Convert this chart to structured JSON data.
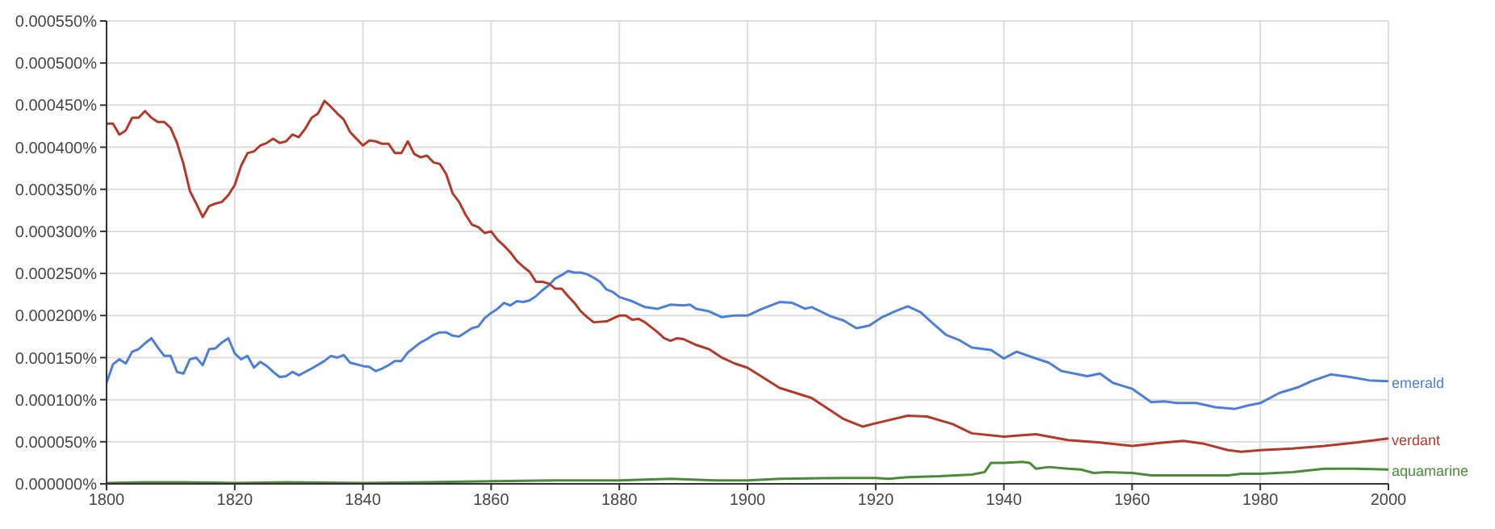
{
  "chart_data": {
    "type": "line",
    "xlim": [
      1800,
      2000
    ],
    "xticks": [
      1800,
      1820,
      1840,
      1860,
      1880,
      1900,
      1920,
      1940,
      1960,
      1980,
      2000
    ],
    "ylim": [
      0,
      0.00055
    ],
    "yticks": [
      {
        "value": 0,
        "label": "0.000000%"
      },
      {
        "value": 5e-05,
        "label": "0.000050%"
      },
      {
        "value": 0.0001,
        "label": "0.000100%"
      },
      {
        "value": 0.00015,
        "label": "0.000150%"
      },
      {
        "value": 0.0002,
        "label": "0.000200%"
      },
      {
        "value": 0.00025,
        "label": "0.000250%"
      },
      {
        "value": 0.0003,
        "label": "0.000300%"
      },
      {
        "value": 0.00035,
        "label": "0.000350%"
      },
      {
        "value": 0.0004,
        "label": "0.000400%"
      },
      {
        "value": 0.00045,
        "label": "0.000450%"
      },
      {
        "value": 0.0005,
        "label": "0.000500%"
      },
      {
        "value": 0.00055,
        "label": "0.000550%"
      }
    ],
    "grid": true,
    "marker": "none",
    "line_style": "solid",
    "series": [
      {
        "name": "emerald",
        "color": "#4d7fd6",
        "x": [
          1800,
          1801,
          1802,
          1803,
          1804,
          1805,
          1806,
          1807,
          1808,
          1809,
          1810,
          1811,
          1812,
          1813,
          1814,
          1815,
          1816,
          1817,
          1818,
          1819,
          1820,
          1821,
          1822,
          1823,
          1824,
          1825,
          1826,
          1827,
          1828,
          1829,
          1830,
          1832,
          1834,
          1835,
          1836,
          1837,
          1838,
          1840,
          1841,
          1842,
          1843,
          1844,
          1845,
          1846,
          1847,
          1848,
          1849,
          1850,
          1851,
          1852,
          1853,
          1854,
          1855,
          1856,
          1857,
          1858,
          1859,
          1860,
          1861,
          1862,
          1863,
          1864,
          1865,
          1866,
          1867,
          1868,
          1869,
          1870,
          1871,
          1872,
          1873,
          1874,
          1875,
          1876,
          1877,
          1878,
          1879,
          1880,
          1882,
          1884,
          1886,
          1888,
          1890,
          1891,
          1892,
          1894,
          1896,
          1898,
          1900,
          1902,
          1905,
          1907,
          1909,
          1910,
          1913,
          1915,
          1917,
          1919,
          1921,
          1923,
          1925,
          1927,
          1929,
          1931,
          1933,
          1935,
          1938,
          1940,
          1942,
          1945,
          1947,
          1949,
          1951,
          1953,
          1955,
          1957,
          1960,
          1963,
          1965,
          1967,
          1970,
          1973,
          1976,
          1978,
          1980,
          1983,
          1986,
          1988,
          1991,
          1994,
          1997,
          2000
        ],
        "values": [
          0.00012,
          0.000142,
          0.000148,
          0.000143,
          0.000157,
          0.00016,
          0.000167,
          0.000173,
          0.000162,
          0.000152,
          0.000152,
          0.000133,
          0.000131,
          0.000148,
          0.00015,
          0.000141,
          0.00016,
          0.000161,
          0.000168,
          0.000173,
          0.000155,
          0.000148,
          0.000152,
          0.000138,
          0.000145,
          0.00014,
          0.000133,
          0.000127,
          0.000128,
          0.000133,
          0.000129,
          0.000137,
          0.000146,
          0.000152,
          0.00015,
          0.000153,
          0.000144,
          0.00014,
          0.000139,
          0.000134,
          0.000137,
          0.000141,
          0.000146,
          0.000146,
          0.000156,
          0.000162,
          0.000168,
          0.000172,
          0.000177,
          0.00018,
          0.00018,
          0.000176,
          0.000175,
          0.00018,
          0.000185,
          0.000187,
          0.000197,
          0.000203,
          0.000208,
          0.000215,
          0.000212,
          0.000217,
          0.000216,
          0.000218,
          0.000223,
          0.00023,
          0.000236,
          0.000244,
          0.000248,
          0.000253,
          0.000251,
          0.000251,
          0.000249,
          0.000245,
          0.00024,
          0.000231,
          0.000228,
          0.000222,
          0.000217,
          0.00021,
          0.000208,
          0.000213,
          0.000212,
          0.000213,
          0.000208,
          0.000205,
          0.000198,
          0.0002,
          0.0002,
          0.000207,
          0.000216,
          0.000215,
          0.000208,
          0.00021,
          0.000199,
          0.000194,
          0.000185,
          0.000188,
          0.000198,
          0.000205,
          0.000211,
          0.000204,
          0.00019,
          0.000177,
          0.000171,
          0.000162,
          0.000159,
          0.000149,
          0.000157,
          0.000149,
          0.000144,
          0.000134,
          0.000131,
          0.000128,
          0.000131,
          0.00012,
          0.000113,
          9.7e-05,
          9.8e-05,
          9.6e-05,
          9.6e-05,
          9.1e-05,
          8.9e-05,
          9.3e-05,
          9.6e-05,
          0.000108,
          0.000115,
          0.000122,
          0.00013,
          0.000127,
          0.000123,
          0.000122
        ]
      },
      {
        "name": "verdant",
        "color": "#b33a2a",
        "x": [
          1800,
          1801,
          1802,
          1803,
          1804,
          1805,
          1806,
          1807,
          1808,
          1809,
          1810,
          1811,
          1812,
          1813,
          1814,
          1815,
          1816,
          1817,
          1818,
          1819,
          1820,
          1821,
          1822,
          1823,
          1824,
          1825,
          1826,
          1827,
          1828,
          1829,
          1830,
          1831,
          1832,
          1833,
          1834,
          1835,
          1836,
          1837,
          1838,
          1839,
          1840,
          1841,
          1842,
          1843,
          1844,
          1845,
          1846,
          1847,
          1848,
          1849,
          1850,
          1851,
          1852,
          1853,
          1854,
          1855,
          1856,
          1857,
          1858,
          1859,
          1860,
          1861,
          1862,
          1863,
          1864,
          1865,
          1866,
          1867,
          1868,
          1869,
          1870,
          1871,
          1872,
          1873,
          1874,
          1875,
          1876,
          1878,
          1880,
          1881,
          1882,
          1883,
          1884,
          1886,
          1887,
          1888,
          1889,
          1890,
          1892,
          1894,
          1896,
          1898,
          1900,
          1905,
          1910,
          1915,
          1918,
          1920,
          1925,
          1928,
          1932,
          1935,
          1940,
          1945,
          1950,
          1955,
          1960,
          1965,
          1968,
          1971,
          1975,
          1977,
          1980,
          1985,
          1990,
          1995,
          2000
        ],
        "values": [
          0.000428,
          0.000428,
          0.000415,
          0.00042,
          0.000435,
          0.000435,
          0.000443,
          0.000435,
          0.00043,
          0.00043,
          0.000423,
          0.000405,
          0.00038,
          0.000348,
          0.000333,
          0.000317,
          0.00033,
          0.000333,
          0.000335,
          0.000343,
          0.000355,
          0.000378,
          0.000393,
          0.000395,
          0.000402,
          0.000405,
          0.00041,
          0.000405,
          0.000407,
          0.000415,
          0.000412,
          0.000422,
          0.000435,
          0.00044,
          0.000455,
          0.000448,
          0.00044,
          0.000433,
          0.000418,
          0.00041,
          0.000402,
          0.000408,
          0.000407,
          0.000404,
          0.000404,
          0.000393,
          0.000393,
          0.000407,
          0.000392,
          0.000388,
          0.00039,
          0.000382,
          0.00038,
          0.000368,
          0.000345,
          0.000335,
          0.00032,
          0.000308,
          0.000305,
          0.000298,
          0.0003,
          0.00029,
          0.000283,
          0.000275,
          0.000265,
          0.000258,
          0.000252,
          0.00024,
          0.00024,
          0.000238,
          0.000232,
          0.000232,
          0.000223,
          0.000215,
          0.000205,
          0.000198,
          0.000192,
          0.000193,
          0.0002,
          0.0002,
          0.000195,
          0.000196,
          0.000192,
          0.00018,
          0.000173,
          0.00017,
          0.000173,
          0.000172,
          0.000165,
          0.00016,
          0.00015,
          0.000143,
          0.000138,
          0.000114,
          0.000102,
          7.7e-05,
          6.8e-05,
          7.2e-05,
          8.1e-05,
          8e-05,
          7.1e-05,
          6e-05,
          5.6e-05,
          5.9e-05,
          5.2e-05,
          4.9e-05,
          4.5e-05,
          4.9e-05,
          5.1e-05,
          4.8e-05,
          4e-05,
          3.8e-05,
          4e-05,
          4.2e-05,
          4.5e-05,
          4.9e-05,
          5.4e-05
        ]
      },
      {
        "name": "aquamarine",
        "color": "#4c8a3a",
        "x": [
          1800,
          1806,
          1812,
          1820,
          1828,
          1840,
          1860,
          1870,
          1880,
          1888,
          1895,
          1900,
          1905,
          1915,
          1920,
          1922,
          1925,
          1930,
          1935,
          1937,
          1938,
          1940,
          1943,
          1944,
          1945,
          1947,
          1950,
          1952,
          1954,
          1956,
          1960,
          1962,
          1963,
          1970,
          1975,
          1977,
          1980,
          1985,
          1990,
          1995,
          2000
        ],
        "values": [
          1e-06,
          2e-06,
          2e-06,
          1e-06,
          2e-06,
          1e-06,
          3e-06,
          4e-06,
          4e-06,
          6e-06,
          4e-06,
          4e-06,
          6e-06,
          7e-06,
          7e-06,
          6e-06,
          8e-06,
          9e-06,
          1.1e-05,
          1.4e-05,
          2.5e-05,
          2.5e-05,
          2.6e-05,
          2.5e-05,
          1.8e-05,
          2e-05,
          1.8e-05,
          1.7e-05,
          1.3e-05,
          1.4e-05,
          1.3e-05,
          1.1e-05,
          1e-05,
          1e-05,
          1e-05,
          1.2e-05,
          1.2e-05,
          1.4e-05,
          1.8e-05,
          1.8e-05,
          1.7e-05
        ]
      }
    ]
  }
}
